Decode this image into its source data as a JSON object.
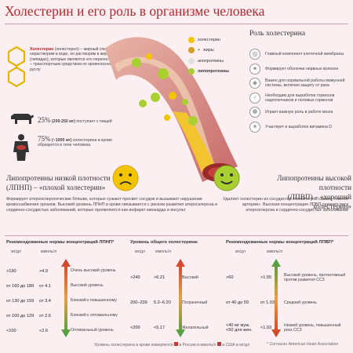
{
  "title": "Холестерин и его роль в организме человека",
  "intro": {
    "name": "Холестерин",
    "text": " (холестерол) – жирный спирт, нерастворим в воде, но растворим в жирах (липидах), которые являются его переносчиками – транспортным средством по кровеносному руслу"
  },
  "food": {
    "percent": "25",
    "range": "(200-250 мг)",
    "text": "поступает с пищей"
  },
  "liver": {
    "percent": "75",
    "range": "(~1000 мг)",
    "text": "холестерина в крови образуется в теле человека"
  },
  "legend": [
    {
      "label": "холестерин",
      "color": "#f4c400"
    },
    {
      "label": "жиры",
      "color": "#d4a020",
      "prefix": "+"
    },
    {
      "label": "апопротеины",
      "color": "#e0e0e0"
    },
    {
      "label": "липопротеины",
      "color": "#a8d030",
      "bold": true
    }
  ],
  "role": {
    "heading": "Роль холестерина",
    "items": [
      {
        "text": "Главный компонент клеточной мембраны",
        "icon": "cell"
      },
      {
        "text": "Формирует оболочки нервных волокон",
        "icon": "nerve"
      },
      {
        "text": "Важен для нормальной работы иммунной системы, включая защиту от рака",
        "icon": "shield"
      },
      {
        "text": "Необходим для выработки гормонов надпочечников и половых гормонов",
        "icon": "hormone"
      },
      {
        "text": "Играет важную роль в работе мозга",
        "icon": "brain"
      },
      {
        "text": "Участвует в выработке витамина D",
        "icon": "sun"
      }
    ]
  },
  "ldl": {
    "heading1": "Липопротеины низкой плотности",
    "heading2": "(ЛПНП) – «плохой холестерин»",
    "desc": "Формирует атеросклеротические бляшки, которые сужают просвет сосудов и вызывают нарушение кровоснабжения органов. Высокий уровень ЛПНП в крови связывается с риском развития атеросклероза и сердечно-сосудистых заболеваний, которые проявляются как инфаркт миокарда и инсульт"
  },
  "hdl": {
    "heading1": "Липопротеины высокой плотности",
    "heading2": "(ЛПВП) – «хороший холестерин»",
    "desc": "Удаляет холестерин из сосудистой стенки и тем самым «чистят артерии». Высокая концентрация ЛПВП снижает риск атеросклероза и сердечно-сосудистых заболеваний"
  },
  "table1": {
    "title": "Рекомендованные нормы концентраций ЛПНП*",
    "col1": "мг/дл",
    "col2": "ммоль/л",
    "rows": [
      {
        "mg": ">190",
        "mmol": ">4.9",
        "label": "Очень высокий уровень",
        "color": "#d23a2a"
      },
      {
        "mg": "от 160 до 189",
        "mmol": "от 4.1",
        "label": "Высокий уровень",
        "color": "#e06a30"
      },
      {
        "mg": "от 130 до 159",
        "mmol": "от 3.4",
        "label": "Близкий к повышенному",
        "color": "#e8a040"
      },
      {
        "mg": "от 100 до 129",
        "mmol": "от 2.6",
        "label": "Близкий к оптимальному",
        "color": "#a8c040"
      },
      {
        "mg": "<100",
        "mmol": "<2.6",
        "label": "Оптимальный уровень",
        "color": "#40a040"
      }
    ]
  },
  "table2": {
    "title": "Уровень общего холестерина:",
    "col1": "мг/дл",
    "col2": "ммоль/л",
    "rows": [
      {
        "mg": ">240",
        "mmol": ">6.21",
        "label": "Высокий"
      },
      {
        "mg": "200–239",
        "mmol": "5.2–6.20",
        "label": "Пограничный"
      },
      {
        "mg": "<200",
        "mmol": "<5.17",
        "label": "Желательный"
      }
    ]
  },
  "table3": {
    "title": "Рекомендованные нормы концентраций ЛПВП*",
    "col1": "мг/дл",
    "col2": "ммоль/л",
    "rows": [
      {
        "mg": ">60",
        "mmol": ">1.55",
        "label": "Высокий уровень, протективный против развития ССЗ"
      },
      {
        "mg": "от 40 до 59",
        "mmol": "от 1.03",
        "label": "Средний уровень"
      },
      {
        "mg": "<40 мг муж.\n<50 для жен.",
        "mmol": "<1.03",
        "label": "Низкий уровень, повышенный риск ССЗ"
      }
    ]
  },
  "footer": {
    "text": "Уровень холестерина в крови измеряется",
    "ru": "в России в ммоль/л",
    "us": "в США в мг/дл",
    "note": "* Согласно American Heart Association"
  }
}
